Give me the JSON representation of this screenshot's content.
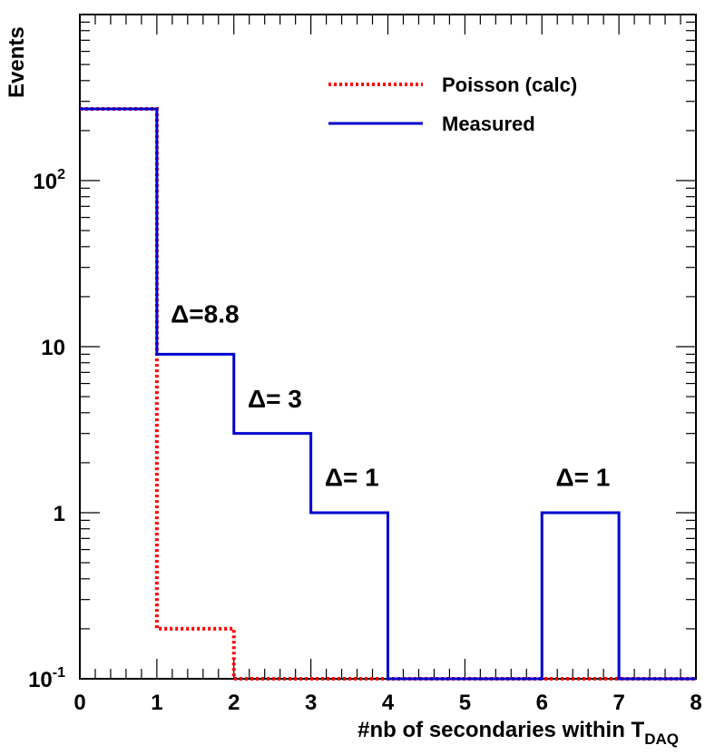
{
  "chart_data": {
    "type": "histogram",
    "title": "",
    "xlabel": "#nb of secondaries within T",
    "xlabel_subscript": "DAQ",
    "ylabel": "Events",
    "xlim": [
      0,
      8
    ],
    "ylim": [
      0.1,
      1000
    ],
    "yscale": "log",
    "bin_edges": [
      0,
      1,
      2,
      3,
      4,
      5,
      6,
      7,
      8
    ],
    "x_tick_labels": [
      "0",
      "1",
      "2",
      "3",
      "4",
      "5",
      "6",
      "7",
      "8"
    ],
    "y_tick_labels": [
      {
        "value": 0.1,
        "base": "10",
        "exp": "-1"
      },
      {
        "value": 1,
        "base": "1",
        "exp": ""
      },
      {
        "value": 10,
        "base": "10",
        "exp": ""
      },
      {
        "value": 100,
        "base": "10",
        "exp": "2"
      }
    ],
    "series": [
      {
        "name": "Poisson (calc)",
        "color": "#ff0000",
        "style": "dotted",
        "values": [
          270,
          0.2,
          0.1,
          0.1,
          0.1,
          0.1,
          0.1,
          0.1
        ]
      },
      {
        "name": "Measured",
        "color": "#0000d0",
        "style": "solid",
        "values": [
          270,
          9,
          3,
          1,
          0.1,
          0.1,
          1,
          0.1
        ]
      }
    ],
    "annotations": [
      {
        "text": "Δ=8.8",
        "x": 1.18,
        "y": 14
      },
      {
        "text": "Δ= 3",
        "x": 2.18,
        "y": 4.3
      },
      {
        "text": "Δ= 1",
        "x": 3.18,
        "y": 1.45
      },
      {
        "text": "Δ= 1",
        "x": 6.18,
        "y": 1.45
      }
    ],
    "legend_position": "top-right"
  }
}
